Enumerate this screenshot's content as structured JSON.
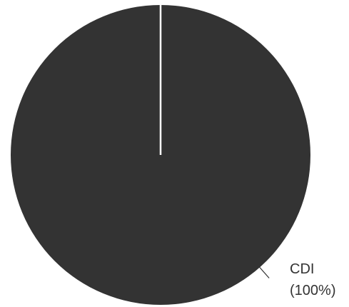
{
  "chart_data": {
    "type": "pie",
    "title": "",
    "slices": [
      {
        "label": "CDI",
        "value": 100,
        "percent_label": "(100%)",
        "color": "#333333"
      }
    ],
    "legend": "none"
  }
}
